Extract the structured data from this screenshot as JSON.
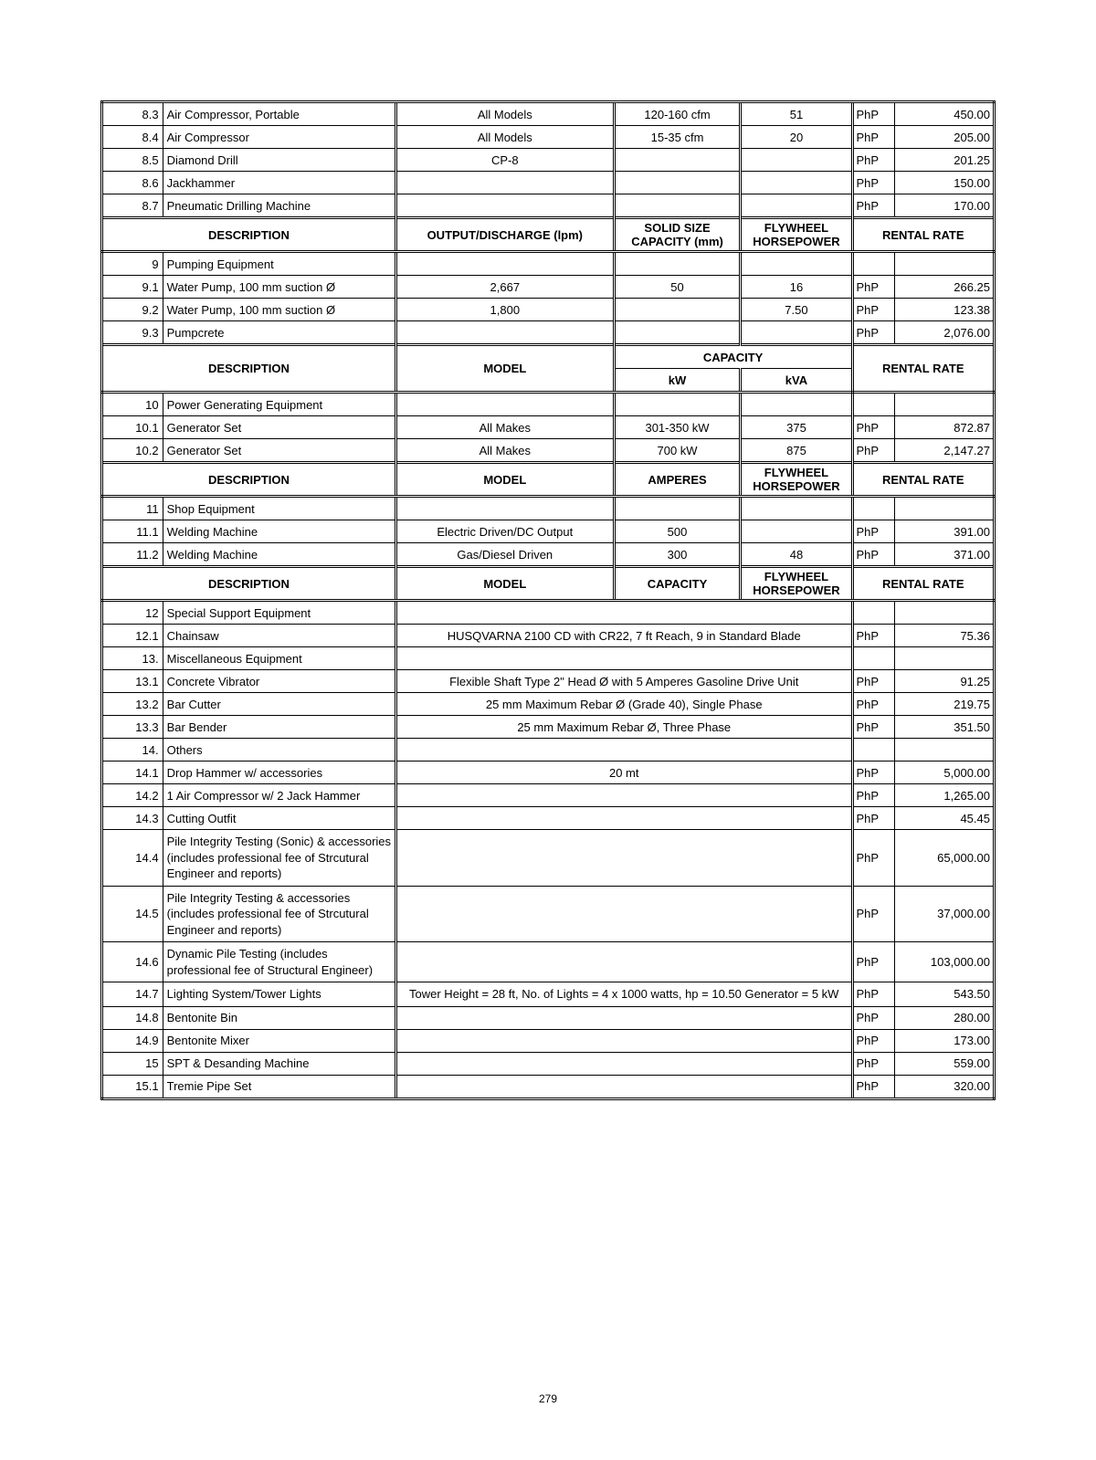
{
  "currency": "PhP",
  "pagenum": "279",
  "section8_rows": [
    {
      "idx": "8.3",
      "desc": "Air Compressor, Portable",
      "model": "All Models",
      "c1": "120-160 cfm",
      "c2": "51",
      "rate": "450.00"
    },
    {
      "idx": "8.4",
      "desc": "Air Compressor",
      "model": "All Models",
      "c1": "15-35 cfm",
      "c2": "20",
      "rate": "205.00"
    },
    {
      "idx": "8.5",
      "desc": "Diamond Drill",
      "model": "CP-8",
      "c1": "",
      "c2": "",
      "rate": "201.25"
    },
    {
      "idx": "8.6",
      "desc": "Jackhammer",
      "model": "",
      "c1": "",
      "c2": "",
      "rate": "150.00"
    },
    {
      "idx": "8.7",
      "desc": "Pneumatic Drilling Machine",
      "model": "",
      "c1": "",
      "c2": "",
      "rate": "170.00"
    }
  ],
  "hdr_pump": {
    "desc": "DESCRIPTION",
    "model": "OUTPUT/DISCHARGE (lpm)",
    "c1": "SOLID SIZE CAPACITY (mm)",
    "c2": "FLYWHEEL HORSEPOWER",
    "rate": "RENTAL RATE"
  },
  "section9_title": {
    "idx": "9",
    "desc": "Pumping Equipment"
  },
  "section9_rows": [
    {
      "idx": "9.1",
      "desc": "Water Pump, 100 mm suction Ø",
      "model": "2,667",
      "c1": "50",
      "c2": "16",
      "rate": "266.25"
    },
    {
      "idx": "9.2",
      "desc": "Water Pump, 100 mm suction Ø",
      "model": "1,800",
      "c1": "",
      "c2": "7.50",
      "rate": "123.38"
    },
    {
      "idx": "9.3",
      "desc": "Pumpcrete",
      "model": "",
      "c1": "",
      "c2": "",
      "rate": "2,076.00"
    }
  ],
  "hdr_power": {
    "desc": "DESCRIPTION",
    "model": "MODEL",
    "cap": "CAPACITY",
    "c1": "kW",
    "c2": "kVA",
    "rate": "RENTAL RATE"
  },
  "section10_title": {
    "idx": "10",
    "desc": "Power Generating Equipment"
  },
  "section10_rows": [
    {
      "idx": "10.1",
      "desc": "Generator Set",
      "model": "All Makes",
      "c1": "301-350 kW",
      "c2": "375",
      "rate": "872.87"
    },
    {
      "idx": "10.2",
      "desc": "Generator Set",
      "model": "All Makes",
      "c1": "700 kW",
      "c2": "875",
      "rate": "2,147.27"
    }
  ],
  "hdr_shop": {
    "desc": "DESCRIPTION",
    "model": "MODEL",
    "c1": "AMPERES",
    "c2": "FLYWHEEL HORSEPOWER",
    "rate": "RENTAL RATE"
  },
  "section11_title": {
    "idx": "11",
    "desc": "Shop Equipment"
  },
  "section11_rows": [
    {
      "idx": "11.1",
      "desc": "Welding Machine",
      "model": "Electric Driven/DC Output",
      "c1": "500",
      "c2": "",
      "rate": "391.00"
    },
    {
      "idx": "11.2",
      "desc": "Welding Machine",
      "model": "Gas/Diesel Driven",
      "c1": "300",
      "c2": "48",
      "rate": "371.00"
    }
  ],
  "hdr_special": {
    "desc": "DESCRIPTION",
    "model": "MODEL",
    "c1": "CAPACITY",
    "c2": "FLYWHEEL HORSEPOWER",
    "rate": "RENTAL RATE"
  },
  "section12_title": {
    "idx": "12",
    "desc": "Special Support Equipment"
  },
  "section12_rows": [
    {
      "idx": "12.1",
      "desc": "Chainsaw",
      "merged": "HUSQVARNA 2100 CD with CR22, 7 ft Reach, 9 in Standard Blade",
      "rate": "75.36"
    }
  ],
  "section13_title": {
    "idx": "13.",
    "desc": "Miscellaneous Equipment"
  },
  "section13_rows": [
    {
      "idx": "13.1",
      "desc": "Concrete Vibrator",
      "merged": "Flexible Shaft Type 2\" Head Ø with 5 Amperes Gasoline Drive Unit",
      "rate": "91.25"
    },
    {
      "idx": "13.2",
      "desc": "Bar Cutter",
      "merged": "25 mm Maximum Rebar Ø (Grade 40), Single Phase",
      "rate": "219.75"
    },
    {
      "idx": "13.3",
      "desc": "Bar Bender",
      "merged": "25 mm Maximum Rebar Ø, Three Phase",
      "rate": "351.50"
    }
  ],
  "section14_title": {
    "idx": "14.",
    "desc": "Others"
  },
  "section14_rows": [
    {
      "idx": "14.1",
      "desc": "Drop Hammer w/ accessories",
      "merged": "20 mt",
      "rate": "5,000.00"
    },
    {
      "idx": "14.2",
      "desc": "1 Air Compressor w/ 2 Jack Hammer",
      "merged": "",
      "rate": "1,265.00"
    },
    {
      "idx": "14.3",
      "desc": "Cutting Outfit",
      "merged": "",
      "rate": "45.45"
    },
    {
      "idx": "14.4",
      "desc": "Pile Integrity Testing (Sonic) & accessories\n(includes professional fee of Strcutural Engineer and reports)",
      "merged": "",
      "rate": "65,000.00",
      "multi": true
    },
    {
      "idx": "14.5",
      "desc": "Pile Integrity Testing & accessories (includes professional fee of Strcutural Engineer and reports)",
      "merged": "",
      "rate": "37,000.00",
      "multi": true
    },
    {
      "idx": "14.6",
      "desc": "Dynamic Pile Testing\n(includes professional fee of Structural Engineer)",
      "merged": "",
      "rate": "103,000.00",
      "multi": true
    },
    {
      "idx": "14.7",
      "desc": "Lighting System/Tower Lights",
      "merged": "Tower Height = 28 ft, No. of Lights = 4 x 1000 watts, hp = 10.50 Generator = 5 kW",
      "rate": "543.50",
      "multi": true
    },
    {
      "idx": "14.8",
      "desc": "Bentonite Bin",
      "merged": "",
      "rate": "280.00"
    },
    {
      "idx": "14.9",
      "desc": "Bentonite Mixer",
      "merged": "",
      "rate": "173.00"
    },
    {
      "idx": "15",
      "desc": "SPT & Desanding Machine",
      "merged": "",
      "rate": "559.00"
    },
    {
      "idx": "15.1",
      "desc": "Tremie Pipe Set",
      "merged": "",
      "rate": "320.00"
    }
  ],
  "colwidths": {
    "idx": "60px",
    "desc": "225px",
    "model": "210px",
    "c1": "125px",
    "c2": "110px",
    "cur": "40px",
    "rate": "95px"
  }
}
